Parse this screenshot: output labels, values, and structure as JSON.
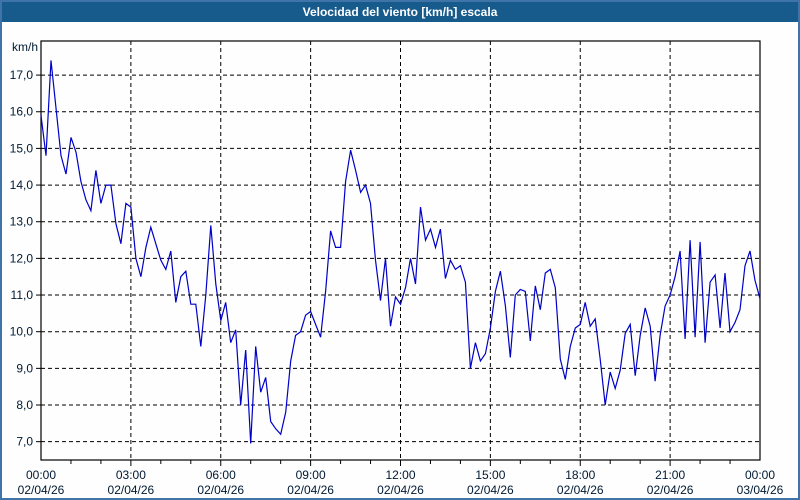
{
  "window": {
    "title": "Velocidad del viento [km/h] escala"
  },
  "colors": {
    "titlebar_bg": "#175A8C",
    "titlebar_text": "#FFFFFF",
    "window_border": "#3E74A8",
    "plot_bg": "#FFFFFF",
    "line": "#0000C8",
    "grid": "#000000",
    "axis": "#000000",
    "text": "#001933"
  },
  "chart_data": {
    "type": "line",
    "title": "Velocidad del viento [km/h] escala",
    "ylabel": "km/h",
    "grid": true,
    "grid_style": "dashed",
    "legend_position": "none",
    "y_axis": {
      "min": 6.5,
      "max": 17.93,
      "ticks": [
        17,
        16,
        15,
        14,
        13,
        12,
        11,
        10,
        9,
        8,
        7
      ],
      "tick_labels": [
        "17,0",
        "16,0",
        "15,0",
        "14,0",
        "13,0",
        "12,0",
        "11,0",
        "10,0",
        "9,0",
        "8,0",
        "7,0"
      ]
    },
    "x_axis": {
      "min_hours": 0,
      "max_hours": 24,
      "minor_tick_every_hours": 1,
      "major_ticks": [
        {
          "hours": 0,
          "time": "00:00",
          "date": "02/04/26"
        },
        {
          "hours": 3,
          "time": "03:00",
          "date": "02/04/26"
        },
        {
          "hours": 6,
          "time": "06:00",
          "date": "02/04/26"
        },
        {
          "hours": 9,
          "time": "09:00",
          "date": "02/04/26"
        },
        {
          "hours": 12,
          "time": "12:00",
          "date": "02/04/26"
        },
        {
          "hours": 15,
          "time": "15:00",
          "date": "02/04/26"
        },
        {
          "hours": 18,
          "time": "18:00",
          "date": "02/04/26"
        },
        {
          "hours": 21,
          "time": "21:00",
          "date": "02/04/26"
        },
        {
          "hours": 24,
          "time": "00:00",
          "date": "03/04/26"
        }
      ]
    },
    "sample_interval_minutes": 10,
    "series": [
      {
        "name": "Velocidad del viento",
        "unit": "km/h",
        "values": [
          15.9,
          14.8,
          17.4,
          16.1,
          14.8,
          14.3,
          15.3,
          14.9,
          14.1,
          13.6,
          13.3,
          14.4,
          13.5,
          14.0,
          14.0,
          12.95,
          12.4,
          13.5,
          13.4,
          12.0,
          11.5,
          12.3,
          12.85,
          12.4,
          11.95,
          11.7,
          12.2,
          10.8,
          11.5,
          11.65,
          10.75,
          10.75,
          9.6,
          11.0,
          12.9,
          11.3,
          10.3,
          10.8,
          9.7,
          10.05,
          8.0,
          9.5,
          6.95,
          9.6,
          8.35,
          8.75,
          7.55,
          7.35,
          7.2,
          7.8,
          9.2,
          9.9,
          10.0,
          10.45,
          10.55,
          10.2,
          9.85,
          11.1,
          12.75,
          12.3,
          12.3,
          14.1,
          14.95,
          14.4,
          13.8,
          14.0,
          13.5,
          11.95,
          10.85,
          12.0,
          10.15,
          10.95,
          10.75,
          11.2,
          12.0,
          11.3,
          13.4,
          12.5,
          12.8,
          12.3,
          12.8,
          11.45,
          11.95,
          11.7,
          11.8,
          11.35,
          9.0,
          9.7,
          9.2,
          9.4,
          10.1,
          11.1,
          11.65,
          10.7,
          9.3,
          11.0,
          11.15,
          11.1,
          9.75,
          11.25,
          10.6,
          11.6,
          11.7,
          11.2,
          9.25,
          8.7,
          9.6,
          10.1,
          10.2,
          10.8,
          10.15,
          10.35,
          9.25,
          8.0,
          8.9,
          8.45,
          8.95,
          9.95,
          10.2,
          8.8,
          9.9,
          10.65,
          10.15,
          8.65,
          9.9,
          10.7,
          11.0,
          11.5,
          12.2,
          9.8,
          12.5,
          9.85,
          12.45,
          9.7,
          11.35,
          11.55,
          10.1,
          11.6,
          10.0,
          10.25,
          10.6,
          11.8,
          12.2,
          11.4,
          10.9
        ]
      }
    ]
  }
}
